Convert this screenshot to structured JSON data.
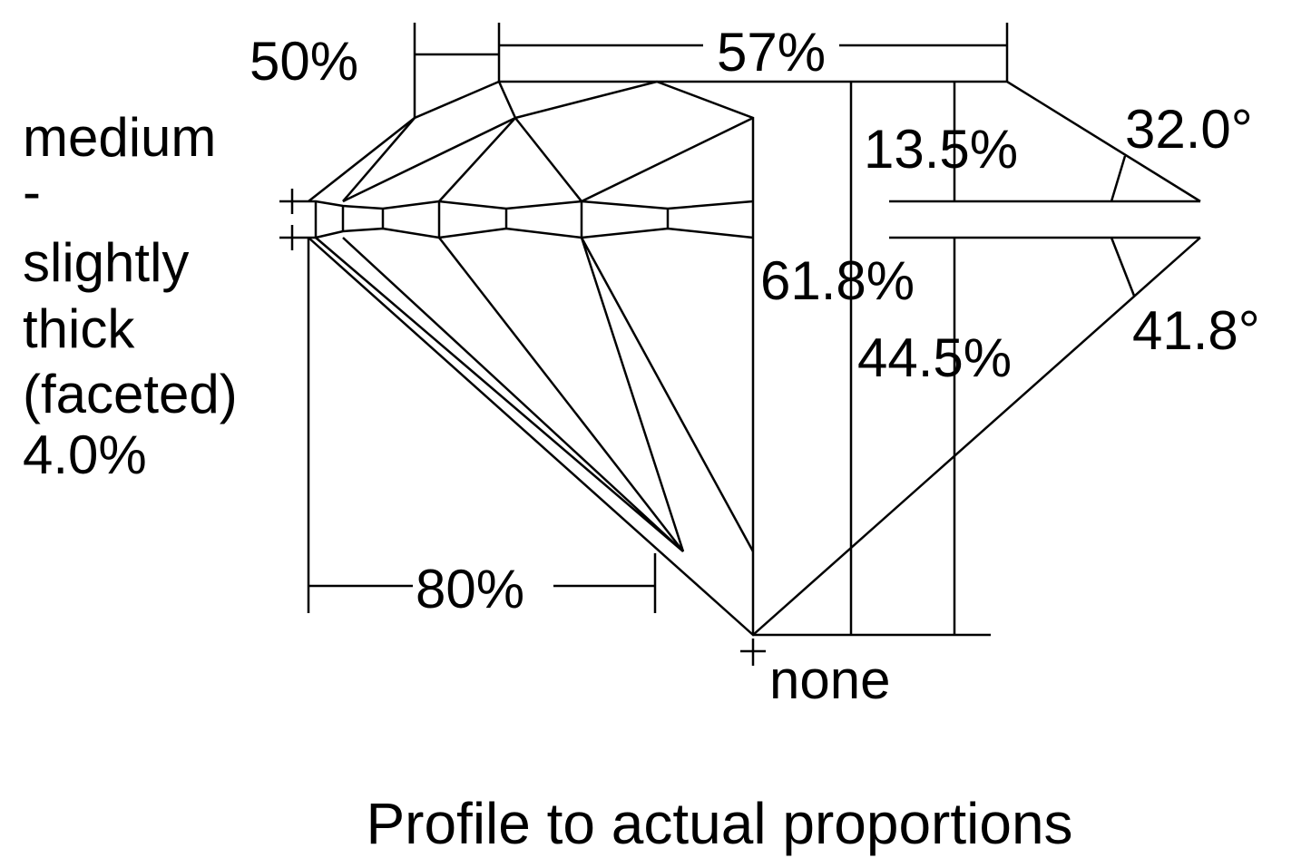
{
  "labels": {
    "star_length": "50%",
    "table": "57%",
    "girdle": [
      "medium",
      "-",
      "slightly",
      "thick",
      "(faceted)",
      "4.0%"
    ],
    "crown_height": "13.5%",
    "crown_angle": "32.0°",
    "total_depth": "61.8%",
    "pavilion_depth": "44.5%",
    "pavilion_angle": "41.8°",
    "lower_half": "80%",
    "culet": "none"
  },
  "caption": "Profile to actual proportions"
}
